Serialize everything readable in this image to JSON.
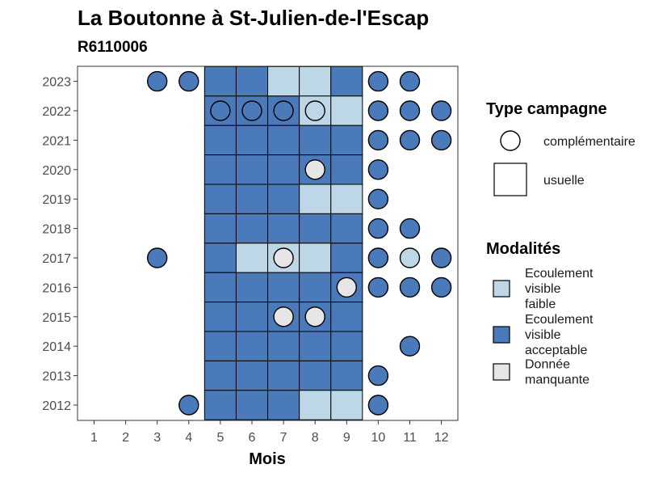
{
  "chart_data": {
    "type": "heatmap",
    "title": "La Boutonne à St-Julien-de-l'Escap",
    "subtitle": "R6110006",
    "xlabel": "Mois",
    "ylabel": "",
    "x_categories": [
      "1",
      "2",
      "3",
      "4",
      "5",
      "6",
      "7",
      "8",
      "9",
      "10",
      "11",
      "12"
    ],
    "y_categories": [
      "2012",
      "2013",
      "2014",
      "2015",
      "2016",
      "2017",
      "2018",
      "2019",
      "2020",
      "2021",
      "2022",
      "2023"
    ],
    "colors": {
      "faible": "#bdd7e7",
      "acceptable": "#4a7aba",
      "manquante": "#e6e6e6",
      "stroke": "#000000"
    },
    "legend_type": {
      "title": "Type campagne",
      "items": [
        {
          "key": "complementaire",
          "label": "complémentaire",
          "shape": "circle"
        },
        {
          "key": "usuelle",
          "label": "usuelle",
          "shape": "square"
        }
      ]
    },
    "legend_modalites": {
      "title": "Modalités",
      "items": [
        {
          "key": "faible",
          "lines": [
            "Ecoulement",
            "visible",
            "faible"
          ]
        },
        {
          "key": "acceptable",
          "lines": [
            "Ecoulement",
            "visible",
            "acceptable"
          ]
        },
        {
          "key": "manquante",
          "lines": [
            "Donnée",
            "manquante"
          ]
        }
      ]
    },
    "points": [
      {
        "year": "2023",
        "month": 3,
        "type": "complementaire",
        "modalite": "acceptable"
      },
      {
        "year": "2023",
        "month": 4,
        "type": "complementaire",
        "modalite": "acceptable"
      },
      {
        "year": "2023",
        "month": 5,
        "type": "usuelle",
        "modalite": "acceptable"
      },
      {
        "year": "2023",
        "month": 6,
        "type": "usuelle",
        "modalite": "acceptable"
      },
      {
        "year": "2023",
        "month": 7,
        "type": "usuelle",
        "modalite": "faible"
      },
      {
        "year": "2023",
        "month": 8,
        "type": "usuelle",
        "modalite": "faible"
      },
      {
        "year": "2023",
        "month": 9,
        "type": "usuelle",
        "modalite": "acceptable"
      },
      {
        "year": "2023",
        "month": 10,
        "type": "complementaire",
        "modalite": "acceptable"
      },
      {
        "year": "2023",
        "month": 11,
        "type": "complementaire",
        "modalite": "acceptable"
      },
      {
        "year": "2022",
        "month": 5,
        "type": "usuelle",
        "modalite": "acceptable"
      },
      {
        "year": "2022",
        "month": 5,
        "type": "complementaire",
        "modalite": "acceptable"
      },
      {
        "year": "2022",
        "month": 6,
        "type": "usuelle",
        "modalite": "acceptable"
      },
      {
        "year": "2022",
        "month": 6,
        "type": "complementaire",
        "modalite": "acceptable"
      },
      {
        "year": "2022",
        "month": 7,
        "type": "usuelle",
        "modalite": "acceptable"
      },
      {
        "year": "2022",
        "month": 7,
        "type": "complementaire",
        "modalite": "acceptable"
      },
      {
        "year": "2022",
        "month": 8,
        "type": "usuelle",
        "modalite": "faible"
      },
      {
        "year": "2022",
        "month": 8,
        "type": "complementaire",
        "modalite": "faible"
      },
      {
        "year": "2022",
        "month": 9,
        "type": "usuelle",
        "modalite": "faible"
      },
      {
        "year": "2022",
        "month": 10,
        "type": "complementaire",
        "modalite": "acceptable"
      },
      {
        "year": "2022",
        "month": 11,
        "type": "complementaire",
        "modalite": "acceptable"
      },
      {
        "year": "2022",
        "month": 12,
        "type": "complementaire",
        "modalite": "acceptable"
      },
      {
        "year": "2021",
        "month": 5,
        "type": "usuelle",
        "modalite": "acceptable"
      },
      {
        "year": "2021",
        "month": 6,
        "type": "usuelle",
        "modalite": "acceptable"
      },
      {
        "year": "2021",
        "month": 7,
        "type": "usuelle",
        "modalite": "acceptable"
      },
      {
        "year": "2021",
        "month": 8,
        "type": "usuelle",
        "modalite": "acceptable"
      },
      {
        "year": "2021",
        "month": 9,
        "type": "usuelle",
        "modalite": "acceptable"
      },
      {
        "year": "2021",
        "month": 10,
        "type": "complementaire",
        "modalite": "acceptable"
      },
      {
        "year": "2021",
        "month": 11,
        "type": "complementaire",
        "modalite": "acceptable"
      },
      {
        "year": "2021",
        "month": 12,
        "type": "complementaire",
        "modalite": "acceptable"
      },
      {
        "year": "2020",
        "month": 5,
        "type": "usuelle",
        "modalite": "acceptable"
      },
      {
        "year": "2020",
        "month": 6,
        "type": "usuelle",
        "modalite": "acceptable"
      },
      {
        "year": "2020",
        "month": 7,
        "type": "usuelle",
        "modalite": "acceptable"
      },
      {
        "year": "2020",
        "month": 8,
        "type": "usuelle",
        "modalite": "acceptable"
      },
      {
        "year": "2020",
        "month": 8,
        "type": "complementaire",
        "modalite": "manquante"
      },
      {
        "year": "2020",
        "month": 9,
        "type": "usuelle",
        "modalite": "acceptable"
      },
      {
        "year": "2020",
        "month": 10,
        "type": "complementaire",
        "modalite": "acceptable"
      },
      {
        "year": "2019",
        "month": 5,
        "type": "usuelle",
        "modalite": "acceptable"
      },
      {
        "year": "2019",
        "month": 6,
        "type": "usuelle",
        "modalite": "acceptable"
      },
      {
        "year": "2019",
        "month": 7,
        "type": "usuelle",
        "modalite": "acceptable"
      },
      {
        "year": "2019",
        "month": 8,
        "type": "usuelle",
        "modalite": "faible"
      },
      {
        "year": "2019",
        "month": 9,
        "type": "usuelle",
        "modalite": "faible"
      },
      {
        "year": "2019",
        "month": 10,
        "type": "complementaire",
        "modalite": "acceptable"
      },
      {
        "year": "2018",
        "month": 5,
        "type": "usuelle",
        "modalite": "acceptable"
      },
      {
        "year": "2018",
        "month": 6,
        "type": "usuelle",
        "modalite": "acceptable"
      },
      {
        "year": "2018",
        "month": 7,
        "type": "usuelle",
        "modalite": "acceptable"
      },
      {
        "year": "2018",
        "month": 8,
        "type": "usuelle",
        "modalite": "acceptable"
      },
      {
        "year": "2018",
        "month": 9,
        "type": "usuelle",
        "modalite": "acceptable"
      },
      {
        "year": "2018",
        "month": 10,
        "type": "complementaire",
        "modalite": "acceptable"
      },
      {
        "year": "2018",
        "month": 11,
        "type": "complementaire",
        "modalite": "acceptable"
      },
      {
        "year": "2017",
        "month": 3,
        "type": "complementaire",
        "modalite": "acceptable"
      },
      {
        "year": "2017",
        "month": 5,
        "type": "usuelle",
        "modalite": "acceptable"
      },
      {
        "year": "2017",
        "month": 6,
        "type": "usuelle",
        "modalite": "faible"
      },
      {
        "year": "2017",
        "month": 7,
        "type": "usuelle",
        "modalite": "faible"
      },
      {
        "year": "2017",
        "month": 7,
        "type": "complementaire",
        "modalite": "manquante"
      },
      {
        "year": "2017",
        "month": 8,
        "type": "usuelle",
        "modalite": "faible"
      },
      {
        "year": "2017",
        "month": 9,
        "type": "usuelle",
        "modalite": "acceptable"
      },
      {
        "year": "2017",
        "month": 10,
        "type": "complementaire",
        "modalite": "acceptable"
      },
      {
        "year": "2017",
        "month": 11,
        "type": "complementaire",
        "modalite": "faible"
      },
      {
        "year": "2017",
        "month": 12,
        "type": "complementaire",
        "modalite": "acceptable"
      },
      {
        "year": "2016",
        "month": 5,
        "type": "usuelle",
        "modalite": "acceptable"
      },
      {
        "year": "2016",
        "month": 6,
        "type": "usuelle",
        "modalite": "acceptable"
      },
      {
        "year": "2016",
        "month": 7,
        "type": "usuelle",
        "modalite": "acceptable"
      },
      {
        "year": "2016",
        "month": 8,
        "type": "usuelle",
        "modalite": "acceptable"
      },
      {
        "year": "2016",
        "month": 9,
        "type": "usuelle",
        "modalite": "acceptable"
      },
      {
        "year": "2016",
        "month": 9,
        "type": "complementaire",
        "modalite": "manquante"
      },
      {
        "year": "2016",
        "month": 10,
        "type": "complementaire",
        "modalite": "acceptable"
      },
      {
        "year": "2016",
        "month": 11,
        "type": "complementaire",
        "modalite": "acceptable"
      },
      {
        "year": "2016",
        "month": 12,
        "type": "complementaire",
        "modalite": "acceptable"
      },
      {
        "year": "2015",
        "month": 5,
        "type": "usuelle",
        "modalite": "acceptable"
      },
      {
        "year": "2015",
        "month": 6,
        "type": "usuelle",
        "modalite": "acceptable"
      },
      {
        "year": "2015",
        "month": 7,
        "type": "usuelle",
        "modalite": "acceptable"
      },
      {
        "year": "2015",
        "month": 7,
        "type": "complementaire",
        "modalite": "manquante"
      },
      {
        "year": "2015",
        "month": 8,
        "type": "usuelle",
        "modalite": "acceptable"
      },
      {
        "year": "2015",
        "month": 8,
        "type": "complementaire",
        "modalite": "manquante"
      },
      {
        "year": "2015",
        "month": 9,
        "type": "usuelle",
        "modalite": "acceptable"
      },
      {
        "year": "2014",
        "month": 5,
        "type": "usuelle",
        "modalite": "acceptable"
      },
      {
        "year": "2014",
        "month": 6,
        "type": "usuelle",
        "modalite": "acceptable"
      },
      {
        "year": "2014",
        "month": 7,
        "type": "usuelle",
        "modalite": "acceptable"
      },
      {
        "year": "2014",
        "month": 8,
        "type": "usuelle",
        "modalite": "acceptable"
      },
      {
        "year": "2014",
        "month": 9,
        "type": "usuelle",
        "modalite": "acceptable"
      },
      {
        "year": "2014",
        "month": 11,
        "type": "complementaire",
        "modalite": "acceptable"
      },
      {
        "year": "2013",
        "month": 5,
        "type": "usuelle",
        "modalite": "acceptable"
      },
      {
        "year": "2013",
        "month": 6,
        "type": "usuelle",
        "modalite": "acceptable"
      },
      {
        "year": "2013",
        "month": 7,
        "type": "usuelle",
        "modalite": "acceptable"
      },
      {
        "year": "2013",
        "month": 8,
        "type": "usuelle",
        "modalite": "acceptable"
      },
      {
        "year": "2013",
        "month": 9,
        "type": "usuelle",
        "modalite": "acceptable"
      },
      {
        "year": "2013",
        "month": 10,
        "type": "complementaire",
        "modalite": "acceptable"
      },
      {
        "year": "2012",
        "month": 4,
        "type": "complementaire",
        "modalite": "acceptable"
      },
      {
        "year": "2012",
        "month": 5,
        "type": "usuelle",
        "modalite": "acceptable"
      },
      {
        "year": "2012",
        "month": 6,
        "type": "usuelle",
        "modalite": "acceptable"
      },
      {
        "year": "2012",
        "month": 7,
        "type": "usuelle",
        "modalite": "acceptable"
      },
      {
        "year": "2012",
        "month": 8,
        "type": "usuelle",
        "modalite": "faible"
      },
      {
        "year": "2012",
        "month": 9,
        "type": "usuelle",
        "modalite": "faible"
      },
      {
        "year": "2012",
        "month": 10,
        "type": "complementaire",
        "modalite": "acceptable"
      }
    ]
  }
}
